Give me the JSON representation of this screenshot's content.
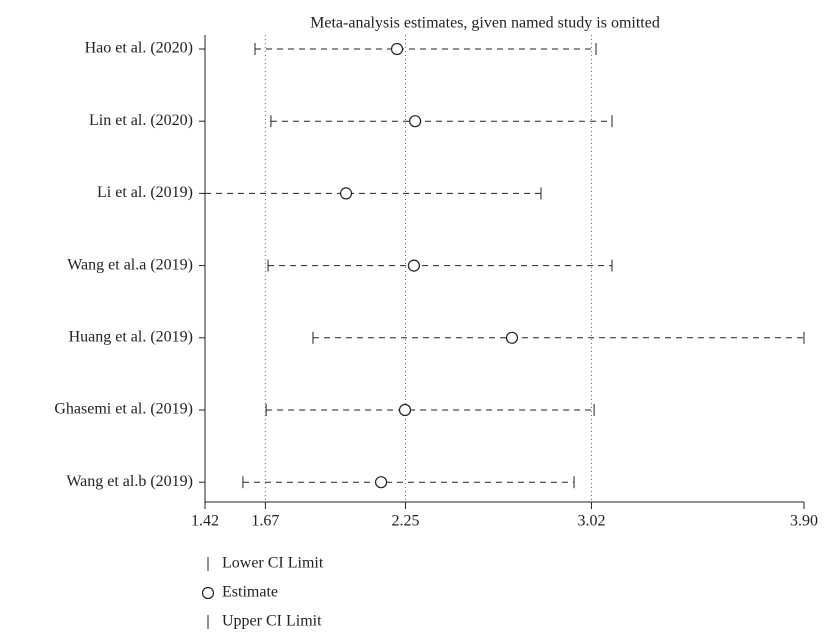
{
  "chart_data": {
    "type": "forest",
    "title": "Meta-analysis estimates, given named study is omitted",
    "categories": [
      "Hao et al. (2020)",
      "Lin et al. (2020)",
      "Li et al. (2019)",
      "Wang et al.a (2019)",
      "Huang et al. (2019)",
      "Ghasemi et al. (2019)",
      "Wang et al.b (2019)"
    ],
    "series": [
      {
        "name": "Lower CI Limit",
        "values": [
          1.627,
          1.693,
          1.42,
          1.681,
          1.867,
          1.673,
          1.577
        ]
      },
      {
        "name": "Estimate",
        "values": [
          2.215,
          2.29,
          2.004,
          2.285,
          2.691,
          2.248,
          2.149
        ]
      },
      {
        "name": "Upper CI Limit",
        "values": [
          3.039,
          3.105,
          2.811,
          3.105,
          3.9,
          3.031,
          2.948
        ]
      }
    ],
    "color": "#222222",
    "xlim": [
      1.42,
      3.9
    ],
    "xticks": [
      1.42,
      1.67,
      2.25,
      3.02,
      {
        "value": 3.9,
        "label": "3.90"
      }
    ],
    "grid": true
  }
}
